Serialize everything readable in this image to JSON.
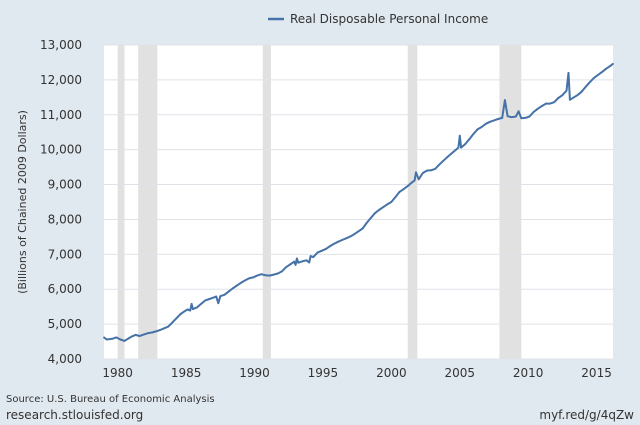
{
  "chart_data": {
    "type": "line",
    "title": "",
    "series": [
      {
        "name": "Real Disposable Personal Income",
        "color": "#4572a7",
        "points": [
          [
            1979.0,
            4620
          ],
          [
            1979.2,
            4560
          ],
          [
            1979.6,
            4580
          ],
          [
            1979.9,
            4620
          ],
          [
            1980.2,
            4560
          ],
          [
            1980.5,
            4520
          ],
          [
            1980.8,
            4590
          ],
          [
            1981.0,
            4640
          ],
          [
            1981.3,
            4690
          ],
          [
            1981.6,
            4660
          ],
          [
            1981.9,
            4700
          ],
          [
            1982.2,
            4740
          ],
          [
            1982.5,
            4760
          ],
          [
            1982.8,
            4790
          ],
          [
            1983.1,
            4830
          ],
          [
            1983.4,
            4880
          ],
          [
            1983.7,
            4930
          ],
          [
            1984.0,
            5050
          ],
          [
            1984.3,
            5170
          ],
          [
            1984.6,
            5290
          ],
          [
            1984.9,
            5370
          ],
          [
            1985.1,
            5420
          ],
          [
            1985.3,
            5390
          ],
          [
            1985.4,
            5580
          ],
          [
            1985.5,
            5430
          ],
          [
            1985.8,
            5480
          ],
          [
            1986.1,
            5580
          ],
          [
            1986.4,
            5680
          ],
          [
            1986.7,
            5720
          ],
          [
            1987.0,
            5760
          ],
          [
            1987.2,
            5790
          ],
          [
            1987.35,
            5600
          ],
          [
            1987.5,
            5800
          ],
          [
            1987.8,
            5840
          ],
          [
            1988.1,
            5930
          ],
          [
            1988.4,
            6020
          ],
          [
            1988.7,
            6100
          ],
          [
            1989.0,
            6180
          ],
          [
            1989.3,
            6250
          ],
          [
            1989.6,
            6310
          ],
          [
            1989.9,
            6340
          ],
          [
            1990.2,
            6390
          ],
          [
            1990.5,
            6430
          ],
          [
            1990.8,
            6400
          ],
          [
            1991.1,
            6390
          ],
          [
            1991.4,
            6420
          ],
          [
            1991.7,
            6450
          ],
          [
            1992.0,
            6510
          ],
          [
            1992.3,
            6630
          ],
          [
            1992.6,
            6710
          ],
          [
            1992.9,
            6790
          ],
          [
            1993.0,
            6700
          ],
          [
            1993.1,
            6880
          ],
          [
            1993.2,
            6760
          ],
          [
            1993.5,
            6800
          ],
          [
            1993.8,
            6830
          ],
          [
            1994.0,
            6770
          ],
          [
            1994.1,
            6950
          ],
          [
            1994.3,
            6920
          ],
          [
            1994.6,
            7050
          ],
          [
            1994.9,
            7100
          ],
          [
            1995.2,
            7150
          ],
          [
            1995.5,
            7230
          ],
          [
            1995.8,
            7300
          ],
          [
            1996.1,
            7360
          ],
          [
            1996.4,
            7410
          ],
          [
            1996.7,
            7460
          ],
          [
            1997.0,
            7510
          ],
          [
            1997.3,
            7580
          ],
          [
            1997.6,
            7660
          ],
          [
            1997.9,
            7740
          ],
          [
            1998.2,
            7900
          ],
          [
            1998.5,
            8040
          ],
          [
            1998.8,
            8180
          ],
          [
            1999.1,
            8270
          ],
          [
            1999.4,
            8350
          ],
          [
            1999.7,
            8430
          ],
          [
            2000.0,
            8500
          ],
          [
            2000.3,
            8640
          ],
          [
            2000.6,
            8790
          ],
          [
            2000.9,
            8870
          ],
          [
            2001.2,
            8960
          ],
          [
            2001.5,
            9060
          ],
          [
            2001.7,
            9120
          ],
          [
            2001.8,
            9350
          ],
          [
            2002.0,
            9150
          ],
          [
            2002.3,
            9330
          ],
          [
            2002.6,
            9400
          ],
          [
            2002.9,
            9410
          ],
          [
            2003.2,
            9450
          ],
          [
            2003.5,
            9570
          ],
          [
            2003.8,
            9680
          ],
          [
            2004.1,
            9790
          ],
          [
            2004.4,
            9890
          ],
          [
            2004.7,
            9990
          ],
          [
            2004.9,
            10060
          ],
          [
            2005.0,
            10400
          ],
          [
            2005.1,
            10060
          ],
          [
            2005.4,
            10160
          ],
          [
            2005.7,
            10300
          ],
          [
            2006.0,
            10450
          ],
          [
            2006.3,
            10580
          ],
          [
            2006.6,
            10650
          ],
          [
            2006.9,
            10740
          ],
          [
            2007.2,
            10800
          ],
          [
            2007.5,
            10840
          ],
          [
            2007.8,
            10880
          ],
          [
            2008.1,
            10910
          ],
          [
            2008.3,
            11420
          ],
          [
            2008.5,
            10960
          ],
          [
            2008.8,
            10930
          ],
          [
            2009.1,
            10950
          ],
          [
            2009.3,
            11100
          ],
          [
            2009.5,
            10900
          ],
          [
            2009.8,
            10910
          ],
          [
            2010.1,
            10950
          ],
          [
            2010.4,
            11080
          ],
          [
            2010.7,
            11170
          ],
          [
            2011.0,
            11250
          ],
          [
            2011.3,
            11320
          ],
          [
            2011.6,
            11320
          ],
          [
            2011.9,
            11360
          ],
          [
            2012.2,
            11480
          ],
          [
            2012.5,
            11560
          ],
          [
            2012.8,
            11690
          ],
          [
            2012.95,
            12200
          ],
          [
            2013.05,
            11430
          ],
          [
            2013.3,
            11490
          ],
          [
            2013.6,
            11560
          ],
          [
            2013.9,
            11660
          ],
          [
            2014.2,
            11800
          ],
          [
            2014.5,
            11930
          ],
          [
            2014.8,
            12050
          ],
          [
            2015.1,
            12140
          ],
          [
            2015.4,
            12230
          ],
          [
            2015.7,
            12320
          ],
          [
            2016.0,
            12400
          ],
          [
            2016.2,
            12460
          ]
        ]
      }
    ],
    "recessions": [
      [
        1980.0,
        1980.5
      ],
      [
        1981.5,
        1982.9
      ],
      [
        1990.6,
        1991.2
      ],
      [
        2001.2,
        2001.9
      ],
      [
        2007.9,
        2009.5
      ]
    ],
    "xlim": [
      1979.0,
      2016.2
    ],
    "ylim": [
      4000,
      13000
    ],
    "xticks": [
      1980,
      1985,
      1990,
      1995,
      2000,
      2005,
      2010,
      2015
    ],
    "yticks": [
      "4,000",
      "5,000",
      "6,000",
      "7,000",
      "8,000",
      "9,000",
      "10,000",
      "11,000",
      "12,000",
      "13,000"
    ],
    "ylabel": "(Billions of Chained 2009 Dollars)",
    "xlabel": "",
    "grid": true,
    "legend_position": "top-center",
    "colors": {
      "background": "#e1e9f0",
      "plot_background": "#ffffff",
      "recession": "#e1e1e1",
      "grid": "#dfe3e8"
    }
  },
  "footer": {
    "source": "Source: U.S. Bureau of Economic Analysis",
    "site": "research.stlouisfed.org",
    "short_url": "myf.red/g/4qZw"
  }
}
